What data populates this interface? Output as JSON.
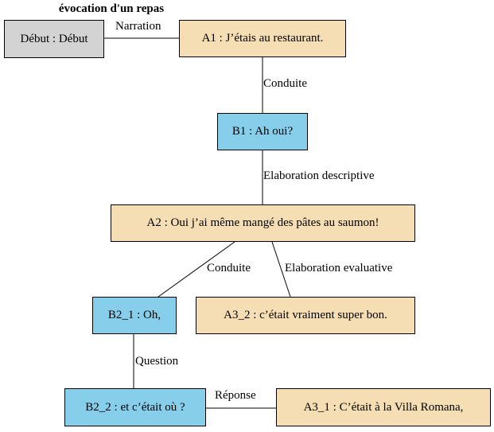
{
  "title": "évocation d'un repas",
  "nodes": {
    "debut": "Début : Début",
    "a1": "A1 : J’étais au restaurant.",
    "b1": "B1 : Ah oui?",
    "a2": "A2 : Oui j’ai même mangé des pâtes au saumon!",
    "b2_1": "B2_1 : Oh,",
    "a3_2": "A3_2 : c’était vraiment super bon.",
    "b2_2": "B2_2 : et c’était où ?",
    "a3_1": "A3_1 : C’était à la Villa Romana,"
  },
  "edges": {
    "debut_a1": "Narration",
    "a1_b1": "Conduite",
    "b1_a2": "Elaboration descriptive",
    "a2_b2_1": "Conduite",
    "a2_a3_2": "Elaboration evaluative",
    "b2_1_b2_2": "Question",
    "b2_2_a3_1": "Réponse"
  },
  "colors": {
    "start": "#d3d3d3",
    "speaker_a": "#f5deb3",
    "speaker_b": "#87ceeb"
  }
}
